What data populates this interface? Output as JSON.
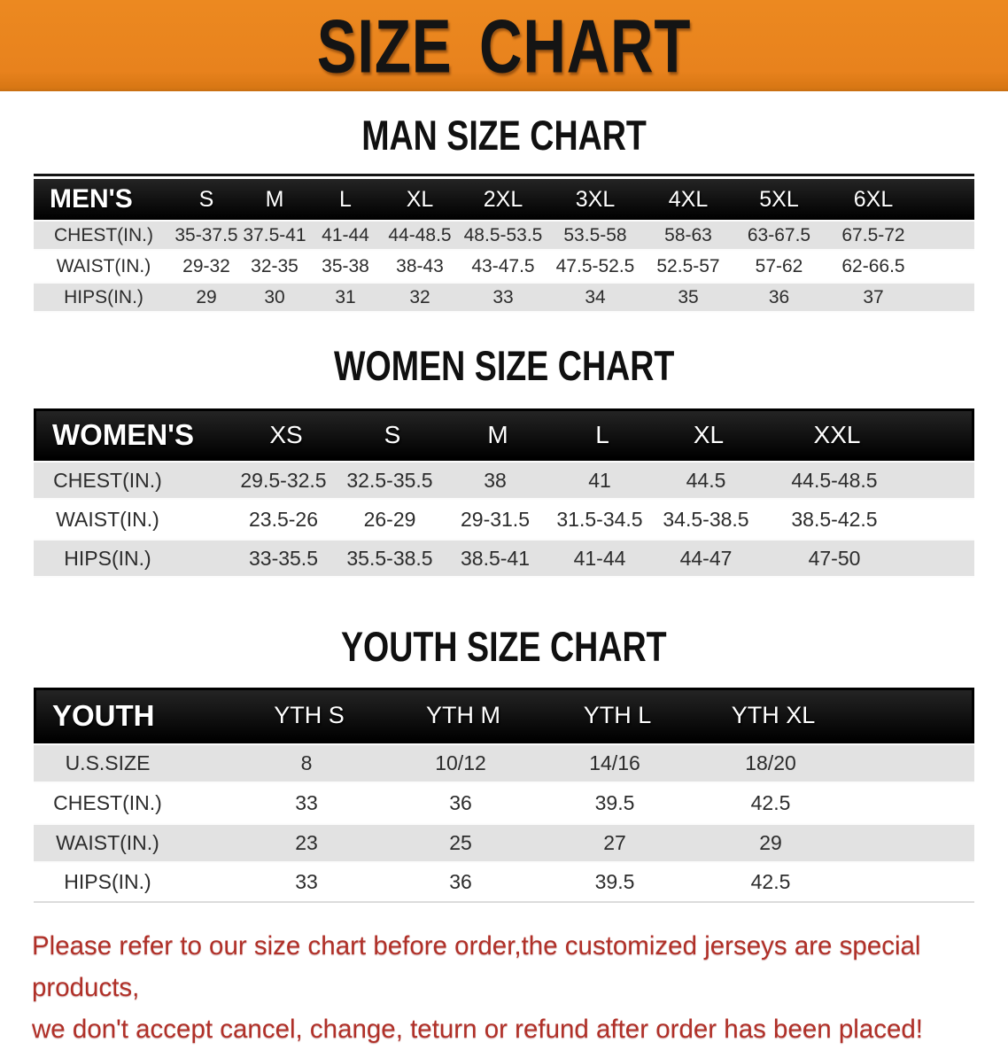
{
  "banner": {
    "title": "SIZE CHART"
  },
  "men": {
    "heading": "MAN SIZE CHART",
    "corner": "MEN'S",
    "cols": [
      "S",
      "M",
      "L",
      "XL",
      "2XL",
      "3XL",
      "4XL",
      "5XL",
      "6XL"
    ],
    "rows": [
      {
        "label": "CHEST(IN.)",
        "values": [
          "35-37.5",
          "37.5-41",
          "41-44",
          "44-48.5",
          "48.5-53.5",
          "53.5-58",
          "58-63",
          "63-67.5",
          "67.5-72"
        ]
      },
      {
        "label": "WAIST(IN.)",
        "values": [
          "29-32",
          "32-35",
          "35-38",
          "38-43",
          "43-47.5",
          "47.5-52.5",
          "52.5-57",
          "57-62",
          "62-66.5"
        ]
      },
      {
        "label": "HIPS(IN.)",
        "values": [
          "29",
          "30",
          "31",
          "32",
          "33",
          "34",
          "35",
          "36",
          "37"
        ]
      }
    ]
  },
  "women": {
    "heading": "WOMEN SIZE CHART",
    "corner": "WOMEN'S",
    "cols": [
      "XS",
      "S",
      "M",
      "L",
      "XL",
      "XXL"
    ],
    "rows": [
      {
        "label": "CHEST(IN.)",
        "values": [
          "29.5-32.5",
          "32.5-35.5",
          "38",
          "41",
          "44.5",
          "44.5-48.5"
        ]
      },
      {
        "label": "WAIST(IN.)",
        "values": [
          "23.5-26",
          "26-29",
          "29-31.5",
          "31.5-34.5",
          "34.5-38.5",
          "38.5-42.5"
        ]
      },
      {
        "label": "HIPS(IN.)",
        "values": [
          "33-35.5",
          "35.5-38.5",
          "38.5-41",
          "41-44",
          "44-47",
          "47-50"
        ]
      }
    ]
  },
  "youth": {
    "heading": "YOUTH SIZE CHART",
    "corner": "YOUTH",
    "cols": [
      "YTH S",
      "YTH M",
      "YTH L",
      "YTH XL"
    ],
    "rows": [
      {
        "label": "U.S.SIZE",
        "values": [
          "8",
          "10/12",
          "14/16",
          "18/20"
        ]
      },
      {
        "label": "CHEST(IN.)",
        "values": [
          "33",
          "36",
          "39.5",
          "42.5"
        ]
      },
      {
        "label": "WAIST(IN.)",
        "values": [
          "23",
          "25",
          "27",
          "29"
        ]
      },
      {
        "label": "HIPS(IN.)",
        "values": [
          "33",
          "36",
          "39.5",
          "42.5"
        ]
      }
    ]
  },
  "footer": {
    "line1": "Please refer to our size chart before order,the customized jerseys are special products,",
    "line2": "we don't accept cancel, change, teturn or refund after order has been placed!"
  },
  "colors": {
    "banner_bg": "#E8821D",
    "header_bar": "#141414",
    "row_gray": "#E2E2E2",
    "note_red": "#B03028",
    "heading_text": "#101010"
  }
}
